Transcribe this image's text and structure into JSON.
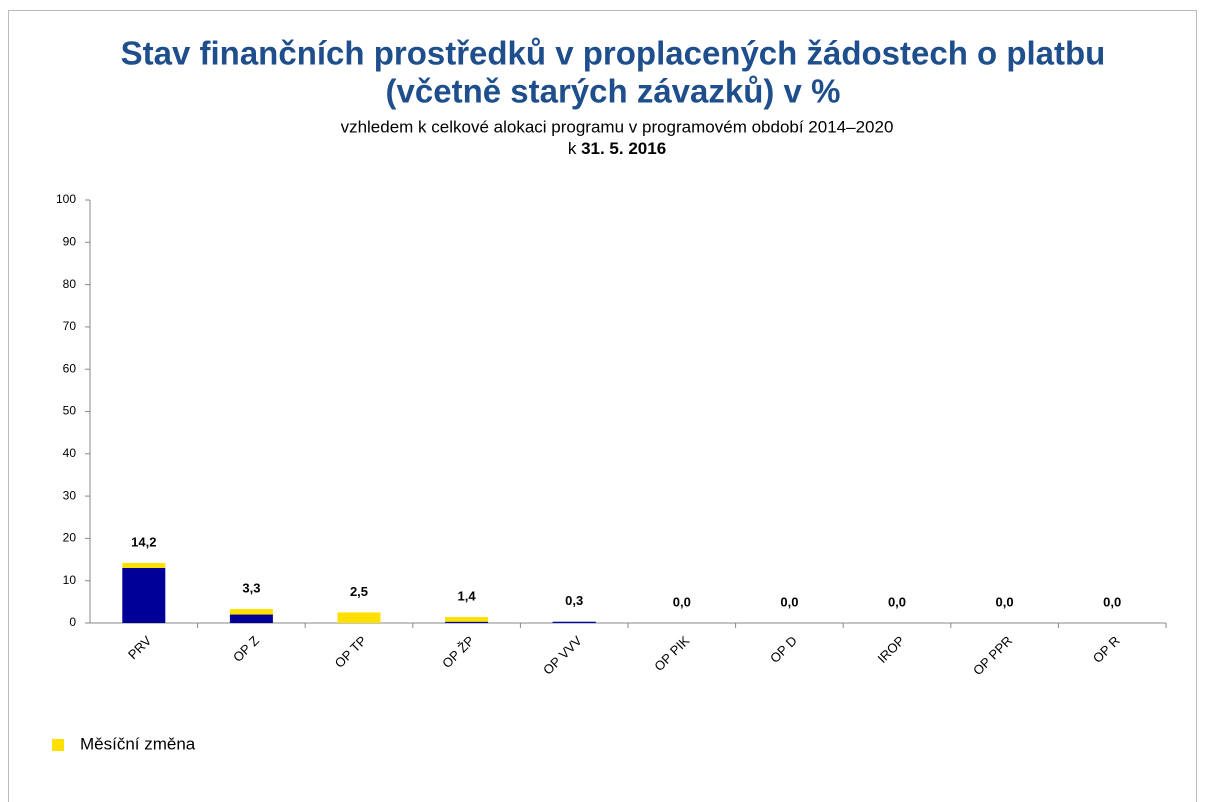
{
  "chart_data": {
    "type": "stacked_bar",
    "title": [
      "Stav finančních prostředků v proplacených žádostech o platbu",
      "(včetně starých závazků) v %"
    ],
    "subtitle": "vzhledem k celkové alokaci programu v programovém období 2014–2020",
    "date_prefix": "k",
    "date": "31. 5. 2016",
    "categories": [
      "PRV",
      "OP Z",
      "OP TP",
      "OP ŽP",
      "OP VVV",
      "OP PIK",
      "OP D",
      "IROP",
      "OP PPR",
      "OP R"
    ],
    "series": [
      {
        "color": "#000099",
        "values": [
          13.0,
          2.0,
          0,
          0.3,
          0.3,
          0,
          0,
          0,
          0,
          0
        ]
      },
      {
        "name": "Měsíční změna",
        "color": "#ffe000",
        "values": [
          1.2,
          1.3,
          2.5,
          1.1,
          0,
          0,
          0,
          0,
          0,
          0
        ]
      }
    ],
    "totals": [
      14.2,
      3.3,
      2.5,
      1.4,
      0.3,
      0,
      0,
      0,
      0,
      0
    ],
    "total_labels": [
      "14,2",
      "3,3",
      "2,5",
      "1,4",
      "0,3",
      "0,0",
      "0,0",
      "0,0",
      "0,0",
      "0,0"
    ],
    "ylim": [
      0,
      100
    ],
    "yticks": [
      0,
      10,
      20,
      30,
      40,
      50,
      60,
      70,
      80,
      90,
      100
    ],
    "legend": "bottom-left"
  }
}
